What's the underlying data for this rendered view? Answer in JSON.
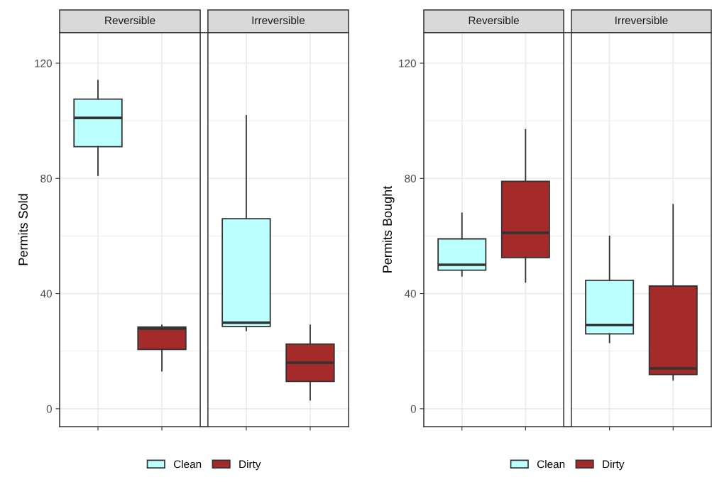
{
  "chart_data": [
    {
      "type": "box",
      "ylabel": "Permits Sold",
      "categories": [
        "Reversible",
        "Irreversible"
      ],
      "ylim": [
        -6.2,
        130.6
      ],
      "yticks": [
        0,
        40,
        80,
        120
      ],
      "grid": true,
      "legend": "bottom",
      "series": [
        {
          "name": "Clean",
          "color": "#bbffff",
          "boxes": [
            {
              "low": 81.1,
              "q1": 91.0,
              "median": 101.0,
              "q3": 107.5,
              "high": 114.0
            },
            {
              "low": 27.2,
              "q1": 28.6,
              "median": 29.9,
              "q3": 66.0,
              "high": 101.8
            }
          ]
        },
        {
          "name": "Dirty",
          "color": "#a52a2a",
          "boxes": [
            {
              "low": 13.2,
              "q1": 20.6,
              "median": 27.8,
              "q3": 28.4,
              "high": 29.0
            },
            {
              "low": 3.1,
              "q1": 9.5,
              "median": 16.0,
              "q3": 22.5,
              "high": 29.0
            }
          ]
        }
      ]
    },
    {
      "type": "box",
      "ylabel": "Permits Bought",
      "categories": [
        "Reversible",
        "Irreversible"
      ],
      "ylim": [
        -6.2,
        130.6
      ],
      "yticks": [
        0,
        40,
        80,
        120
      ],
      "grid": true,
      "legend": "bottom",
      "series": [
        {
          "name": "Clean",
          "color": "#bbffff",
          "boxes": [
            {
              "low": 46.1,
              "q1": 48.1,
              "median": 50.0,
              "q3": 59.0,
              "high": 67.9
            },
            {
              "low": 23.0,
              "q1": 26.0,
              "median": 29.1,
              "q3": 44.6,
              "high": 59.9
            }
          ]
        },
        {
          "name": "Dirty",
          "color": "#a52a2a",
          "boxes": [
            {
              "low": 44.0,
              "q1": 52.5,
              "median": 61.1,
              "q3": 79.0,
              "high": 96.9
            },
            {
              "low": 10.0,
              "q1": 11.9,
              "median": 14.0,
              "q3": 42.6,
              "high": 70.9
            }
          ]
        }
      ]
    }
  ]
}
